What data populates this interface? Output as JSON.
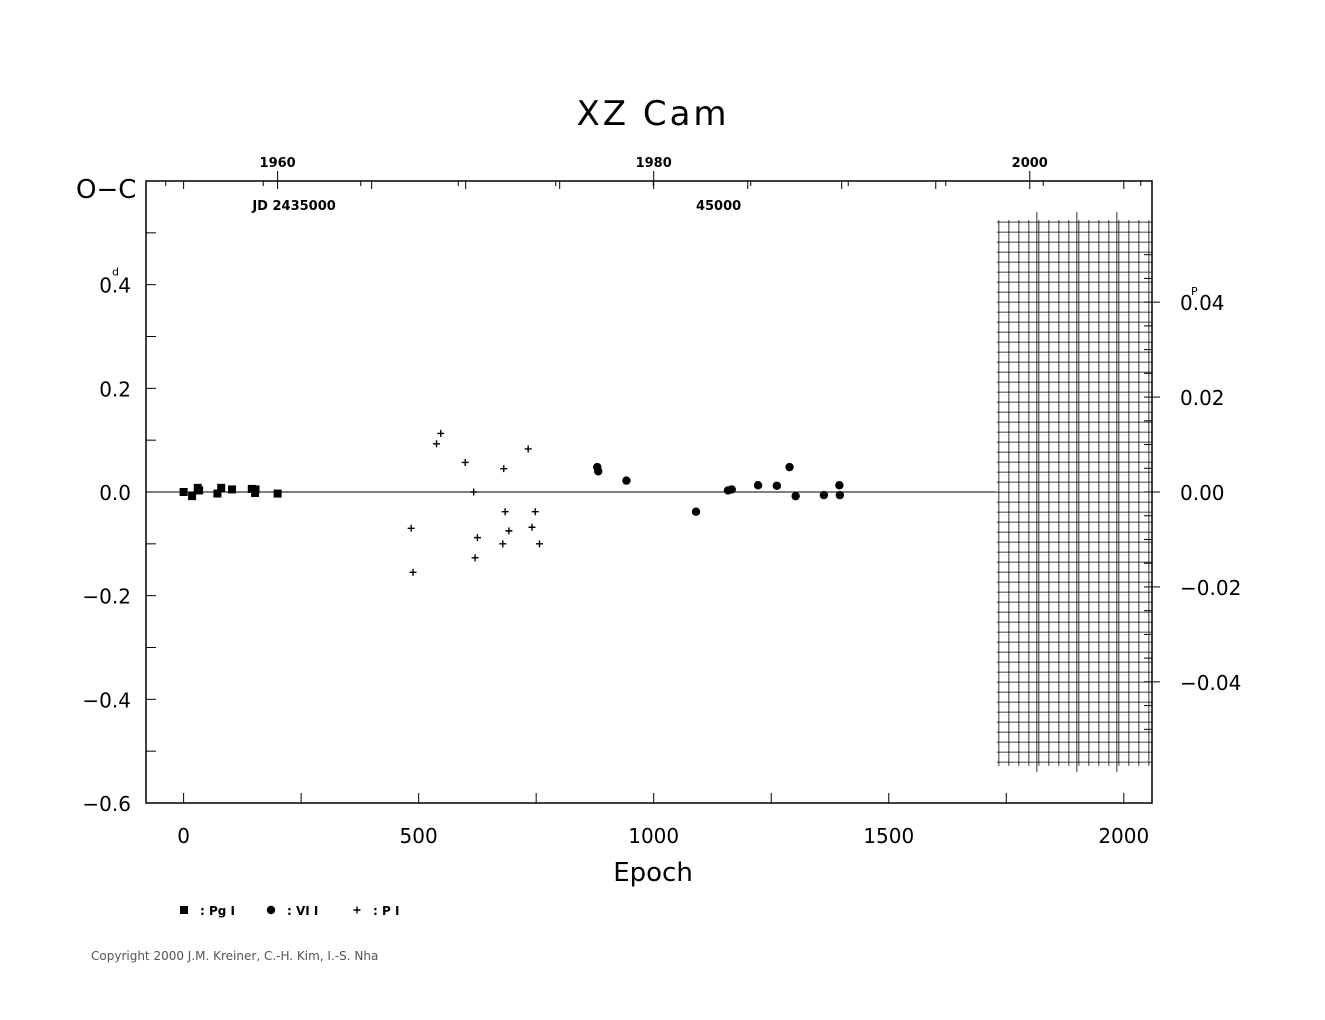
{
  "chart_data": {
    "type": "scatter",
    "title": "XZ Cam",
    "xlabel": "Epoch",
    "ylabel": "O−C",
    "ylabel_unit": "d",
    "right_axis_unit": "P",
    "xlim": [
      -80,
      2060
    ],
    "ylim": [
      -0.6,
      0.6
    ],
    "x_ticks": [
      0,
      500,
      1000,
      1500,
      2000
    ],
    "x_tick_labels": [
      "0",
      "500",
      "1000",
      "1500",
      "2000"
    ],
    "y_ticks": [
      0.4,
      0.2,
      0.0,
      -0.2,
      -0.4,
      -0.6
    ],
    "y_tick_labels": [
      "0.4",
      "0.2",
      "0.0",
      "−0.2",
      "−0.4",
      "−0.6"
    ],
    "right_ticks": [
      0.04,
      0.02,
      0.0,
      -0.02,
      -0.04
    ],
    "right_tick_labels": [
      "0.04",
      "0.02",
      "0.00",
      "−0.02",
      "−0.04"
    ],
    "period_days": 9.157,
    "top_year_ticks": [
      1960,
      1980,
      2000
    ],
    "top_year_labels": [
      "1960",
      "1980",
      "2000"
    ],
    "year_ref": {
      "year": 1980,
      "epoch": 1000,
      "epochs_per_year": 40
    },
    "jd_labels": [
      {
        "text": "JD  2435000",
        "epoch": 235
      },
      {
        "text": "45000",
        "epoch": 1138
      }
    ],
    "future_grid": {
      "x_from": 1730,
      "x_to": 2060,
      "y_from": -0.54,
      "y_to": 0.54
    },
    "series": [
      {
        "name": "Pg I",
        "legend_label": ": Pg  I",
        "marker": "square",
        "points": [
          [
            0,
            0.0
          ],
          [
            18,
            -0.008
          ],
          [
            30,
            0.008
          ],
          [
            33,
            0.003
          ],
          [
            72,
            -0.003
          ],
          [
            80,
            0.008
          ],
          [
            103,
            0.005
          ],
          [
            145,
            0.006
          ],
          [
            153,
            0.005
          ],
          [
            152,
            -0.002
          ],
          [
            200,
            -0.003
          ]
        ]
      },
      {
        "name": "VI I",
        "legend_label": ": VI  I",
        "marker": "circle",
        "points": [
          [
            880,
            0.048
          ],
          [
            882,
            0.04
          ],
          [
            942,
            0.022
          ],
          [
            1090,
            -0.038
          ],
          [
            1158,
            0.003
          ],
          [
            1166,
            0.005
          ],
          [
            1222,
            0.013
          ],
          [
            1262,
            0.012
          ],
          [
            1289,
            0.048
          ],
          [
            1302,
            -0.008
          ],
          [
            1362,
            -0.006
          ],
          [
            1395,
            0.013
          ],
          [
            1396,
            -0.006
          ]
        ]
      },
      {
        "name": "P I",
        "legend_label": ": P  I",
        "marker": "plus",
        "points": [
          [
            484,
            -0.07
          ],
          [
            488,
            -0.155
          ],
          [
            538,
            0.093
          ],
          [
            547,
            0.113
          ],
          [
            599,
            0.057
          ],
          [
            617,
            0.0
          ],
          [
            620,
            -0.127
          ],
          [
            625,
            -0.088
          ],
          [
            681,
            0.045
          ],
          [
            679,
            -0.1
          ],
          [
            684,
            -0.038
          ],
          [
            692,
            -0.075
          ],
          [
            733,
            0.083
          ],
          [
            741,
            -0.068
          ],
          [
            748,
            -0.038
          ],
          [
            757,
            -0.1
          ]
        ]
      }
    ]
  },
  "copyright": "Copyright 2000 J.M. Kreiner, C.-H. Kim, I.-S. Nha"
}
